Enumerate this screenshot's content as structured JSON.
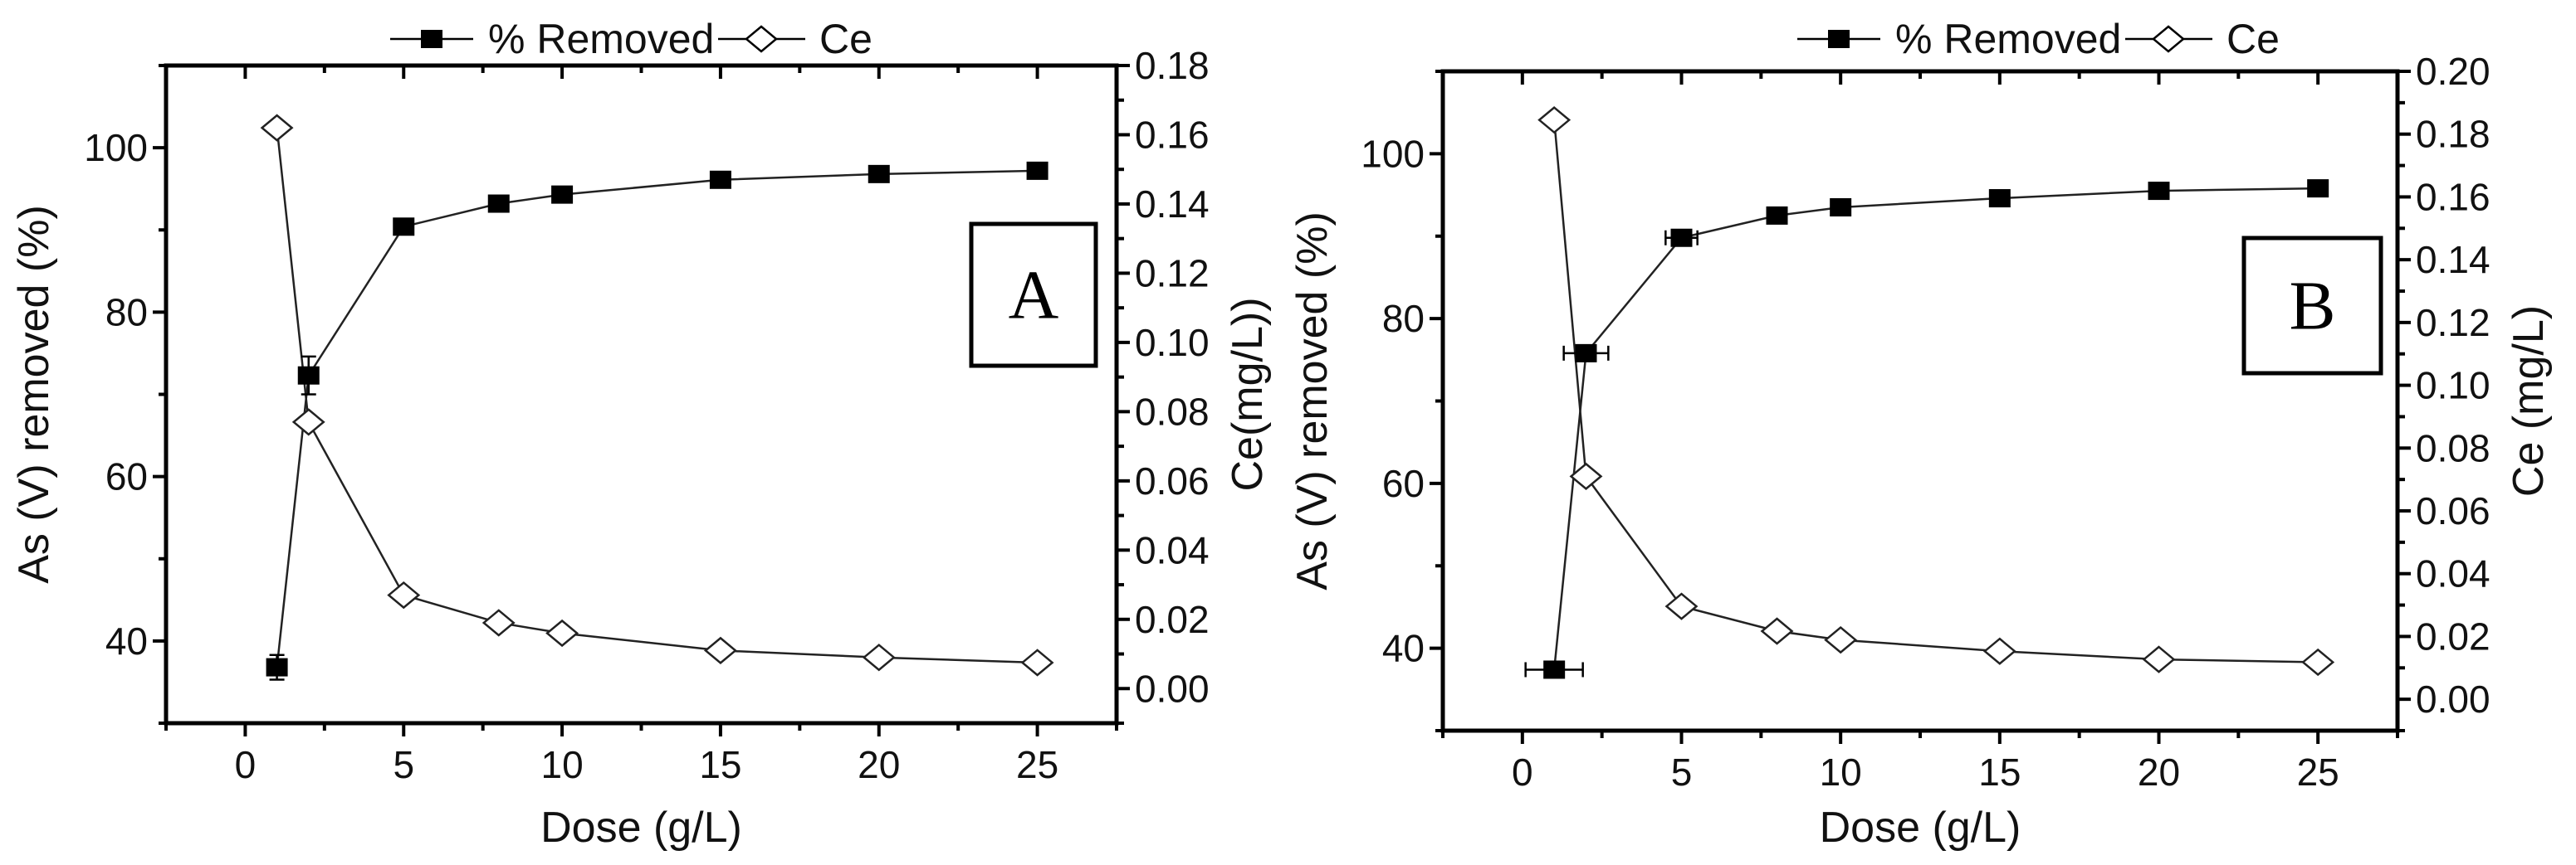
{
  "chart_data": [
    {
      "type": "line",
      "panel_label": "A",
      "xlabel": "Dose (g/L)",
      "ylabel": "As (V) removed (%)",
      "y2label": "Ce(mg/L))",
      "xlim": [
        -2.5,
        27.5
      ],
      "ylim": [
        30,
        110
      ],
      "y2lim": [
        -0.01,
        0.18
      ],
      "xticks": [
        0,
        5,
        10,
        15,
        20,
        25
      ],
      "yticks": [
        40,
        60,
        80,
        100
      ],
      "y2ticks": [
        "0.00",
        "0.02",
        "0.04",
        "0.06",
        "0.08",
        "0.10",
        "0.12",
        "0.14",
        "0.16",
        "0.18"
      ],
      "legend": [
        "% Removed",
        "Ce"
      ],
      "legend_position": "top-center",
      "x": [
        1,
        2,
        5,
        8,
        10,
        15,
        20,
        25
      ],
      "series": [
        {
          "name": "% Removed",
          "axis": "left",
          "marker": "filled-square",
          "values": [
            36.8,
            72.3,
            90.4,
            93.2,
            94.3,
            96.1,
            96.8,
            97.2
          ],
          "y_error": [
            1.5,
            2.3,
            0.8,
            0,
            0,
            0.5,
            0,
            0
          ],
          "x_error": [
            0,
            0,
            0,
            0,
            0,
            0,
            0,
            0
          ]
        },
        {
          "name": "Ce",
          "axis": "right",
          "marker": "open-diamond",
          "values": [
            0.162,
            0.077,
            0.027,
            0.019,
            0.016,
            0.011,
            0.009,
            0.0075
          ]
        }
      ]
    },
    {
      "type": "line",
      "panel_label": "B",
      "xlabel": "Dose (g/L)",
      "ylabel": "As (V) removed (%)",
      "y2label": "Ce (mg/L)",
      "xlim": [
        -2.5,
        27.5
      ],
      "ylim": [
        30,
        110
      ],
      "y2lim": [
        -0.01,
        0.2
      ],
      "xticks": [
        0,
        5,
        10,
        15,
        20,
        25
      ],
      "yticks": [
        40,
        60,
        80,
        100
      ],
      "y2ticks": [
        "0.00",
        "0.02",
        "0.04",
        "0.06",
        "0.08",
        "0.10",
        "0.12",
        "0.14",
        "0.16",
        "0.18",
        "0.20"
      ],
      "legend": [
        "% Removed",
        "Ce"
      ],
      "legend_position": "top-center",
      "x": [
        1,
        2,
        5,
        8,
        10,
        15,
        20,
        25
      ],
      "series": [
        {
          "name": "% Removed",
          "axis": "left",
          "marker": "filled-square",
          "values": [
            37.4,
            75.8,
            89.8,
            92.5,
            93.5,
            94.6,
            95.5,
            95.8
          ],
          "y_error": [
            0,
            0,
            0,
            0,
            0,
            0,
            0,
            0
          ],
          "x_error": [
            0.9,
            0.7,
            0.5,
            0,
            0,
            0,
            0,
            0
          ]
        },
        {
          "name": "Ce",
          "axis": "right",
          "marker": "open-diamond",
          "values": [
            0.1845,
            0.071,
            0.0296,
            0.0217,
            0.0189,
            0.0153,
            0.0127,
            0.0118
          ]
        }
      ]
    }
  ]
}
